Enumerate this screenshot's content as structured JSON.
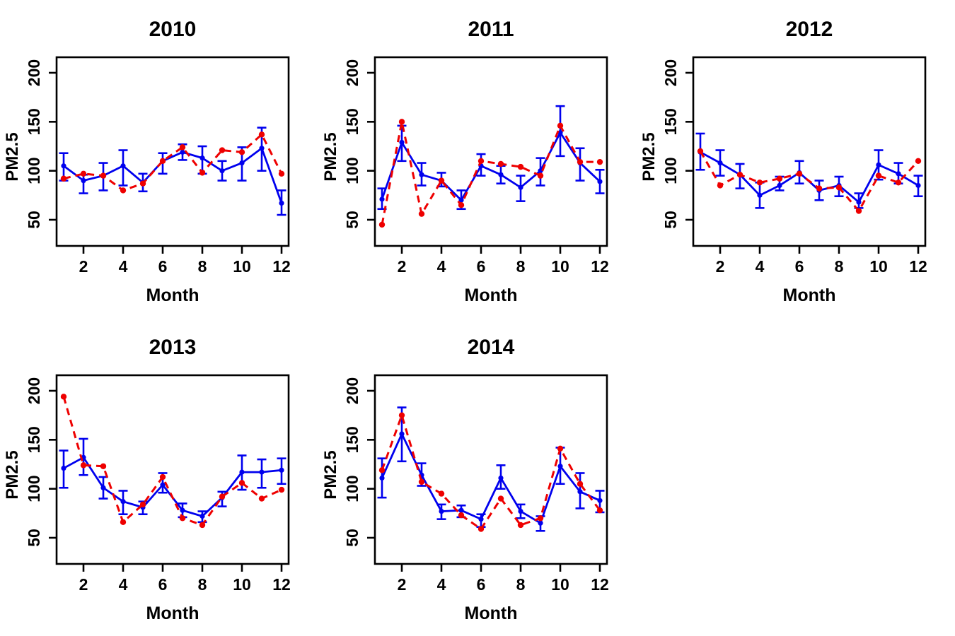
{
  "figure": {
    "ylabel": "PM2.5",
    "xlabel": "Month",
    "y_ticks": [
      50,
      100,
      150,
      200
    ],
    "x_ticks": [
      2,
      4,
      6,
      8,
      10,
      12
    ],
    "colors": {
      "blue_series": "#0000EE",
      "red_series": "#EE0000",
      "axis": "#000000",
      "background": "#FFFFFF"
    }
  },
  "chart_data": [
    {
      "type": "line",
      "title": "2010",
      "xlabel": "Month",
      "ylabel": "PM2.5",
      "x": [
        1,
        2,
        3,
        4,
        5,
        6,
        7,
        8,
        9,
        10,
        11,
        12
      ],
      "xticks": [
        2,
        4,
        6,
        8,
        10,
        12
      ],
      "yticks": [
        50,
        100,
        150,
        200
      ],
      "ylim": [
        23,
        216
      ],
      "xlim": [
        0.5,
        12.5
      ],
      "grid": false,
      "legend": "none",
      "series": [
        {
          "name": "blue-solid-mean-with-error-bars",
          "color": "#0000EE",
          "line_style": "solid",
          "marker": "filled-circle",
          "values": [
            105,
            90,
            95,
            105,
            88,
            110,
            119,
            113,
            100,
            108,
            123,
            67
          ],
          "err_low": [
            90,
            77,
            80,
            85,
            79,
            97,
            111,
            97,
            90,
            90,
            100,
            55
          ],
          "err_high": [
            118,
            96,
            108,
            121,
            97,
            118,
            127,
            125,
            110,
            124,
            144,
            80
          ]
        },
        {
          "name": "red-dashed-line",
          "color": "#EE0000",
          "line_style": "dashed",
          "marker": "filled-circle",
          "values": [
            92,
            97,
            95,
            80,
            87,
            110,
            124,
            98,
            121,
            119,
            137,
            97
          ]
        }
      ]
    },
    {
      "type": "line",
      "title": "2011",
      "xlabel": "Month",
      "ylabel": "PM2.5",
      "x": [
        1,
        2,
        3,
        4,
        5,
        6,
        7,
        8,
        9,
        10,
        11,
        12
      ],
      "xticks": [
        2,
        4,
        6,
        8,
        10,
        12
      ],
      "yticks": [
        50,
        100,
        150,
        200
      ],
      "ylim": [
        23,
        216
      ],
      "xlim": [
        0.5,
        12.5
      ],
      "grid": false,
      "legend": "none",
      "series": [
        {
          "name": "blue-solid-mean-with-error-bars",
          "color": "#0000EE",
          "line_style": "solid",
          "marker": "filled-circle",
          "values": [
            71,
            129,
            96,
            90,
            70,
            105,
            96,
            83,
            100,
            139,
            108,
            89
          ],
          "err_low": [
            61,
            110,
            85,
            84,
            61,
            95,
            87,
            69,
            85,
            115,
            90,
            77
          ],
          "err_high": [
            82,
            146,
            108,
            98,
            80,
            117,
            105,
            95,
            113,
            166,
            123,
            101
          ]
        },
        {
          "name": "red-dashed-line",
          "color": "#EE0000",
          "line_style": "dashed",
          "marker": "filled-circle",
          "values": [
            45,
            150,
            56,
            90,
            65,
            110,
            107,
            104,
            95,
            146,
            109,
            109
          ]
        }
      ]
    },
    {
      "type": "line",
      "title": "2012",
      "xlabel": "Month",
      "ylabel": "PM2.5",
      "x": [
        1,
        2,
        3,
        4,
        5,
        6,
        7,
        8,
        9,
        10,
        11,
        12
      ],
      "xticks": [
        2,
        4,
        6,
        8,
        10,
        12
      ],
      "yticks": [
        50,
        100,
        150,
        200
      ],
      "ylim": [
        23,
        216
      ],
      "xlim": [
        0.5,
        12.5
      ],
      "grid": false,
      "legend": "none",
      "series": [
        {
          "name": "blue-solid-mean-with-error-bars",
          "color": "#0000EE",
          "line_style": "solid",
          "marker": "filled-circle",
          "values": [
            119,
            108,
            96,
            75,
            85,
            98,
            80,
            85,
            68,
            106,
            97,
            85
          ],
          "err_low": [
            101,
            95,
            82,
            62,
            80,
            87,
            70,
            74,
            62,
            91,
            87,
            74
          ],
          "err_high": [
            138,
            121,
            107,
            88,
            94,
            110,
            90,
            94,
            77,
            121,
            108,
            95
          ]
        },
        {
          "name": "red-dashed-line",
          "color": "#EE0000",
          "line_style": "dashed",
          "marker": "filled-circle",
          "values": [
            120,
            85,
            96,
            88,
            92,
            97,
            82,
            83,
            59,
            95,
            88,
            110
          ]
        }
      ]
    },
    {
      "type": "line",
      "title": "2013",
      "xlabel": "Month",
      "ylabel": "PM2.5",
      "x": [
        1,
        2,
        3,
        4,
        5,
        6,
        7,
        8,
        9,
        10,
        11,
        12
      ],
      "xticks": [
        2,
        4,
        6,
        8,
        10,
        12
      ],
      "yticks": [
        50,
        100,
        150,
        200
      ],
      "ylim": [
        23,
        216
      ],
      "xlim": [
        0.5,
        12.5
      ],
      "grid": false,
      "legend": "none",
      "series": [
        {
          "name": "blue-solid-mean-with-error-bars",
          "color": "#0000EE",
          "line_style": "solid",
          "marker": "filled-circle",
          "values": [
            121,
            132,
            101,
            87,
            81,
            104,
            78,
            72,
            91,
            117,
            117,
            119
          ],
          "err_low": [
            101,
            114,
            90,
            74,
            74,
            96,
            71,
            66,
            82,
            99,
            101,
            105
          ],
          "err_high": [
            139,
            151,
            112,
            98,
            87,
            116,
            85,
            77,
            97,
            134,
            130,
            131
          ]
        },
        {
          "name": "red-dashed-line",
          "color": "#EE0000",
          "line_style": "dashed",
          "marker": "filled-circle",
          "values": [
            194,
            124,
            123,
            66,
            84,
            112,
            70,
            63,
            92,
            106,
            90,
            99
          ]
        }
      ]
    },
    {
      "type": "line",
      "title": "2014",
      "xlabel": "Month",
      "ylabel": "PM2.5",
      "x": [
        1,
        2,
        3,
        4,
        5,
        6,
        7,
        8,
        9,
        10,
        11,
        12
      ],
      "xticks": [
        2,
        4,
        6,
        8,
        10,
        12
      ],
      "yticks": [
        50,
        100,
        150,
        200
      ],
      "ylim": [
        23,
        216
      ],
      "xlim": [
        0.5,
        12.5
      ],
      "grid": false,
      "legend": "none",
      "series": [
        {
          "name": "blue-solid-mean-with-error-bars",
          "color": "#0000EE",
          "line_style": "solid",
          "marker": "filled-circle",
          "values": [
            111,
            156,
            114,
            77,
            78,
            69,
            111,
            77,
            65,
            123,
            97,
            88
          ],
          "err_low": [
            91,
            128,
            103,
            69,
            71,
            61,
            100,
            70,
            57,
            105,
            80,
            76
          ],
          "err_high": [
            131,
            183,
            126,
            84,
            83,
            74,
            124,
            84,
            72,
            142,
            116,
            98
          ]
        },
        {
          "name": "red-dashed-line",
          "color": "#EE0000",
          "line_style": "dashed",
          "marker": "filled-circle",
          "values": [
            119,
            175,
            107,
            95,
            73,
            59,
            90,
            63,
            70,
            141,
            105,
            78
          ]
        }
      ]
    }
  ]
}
